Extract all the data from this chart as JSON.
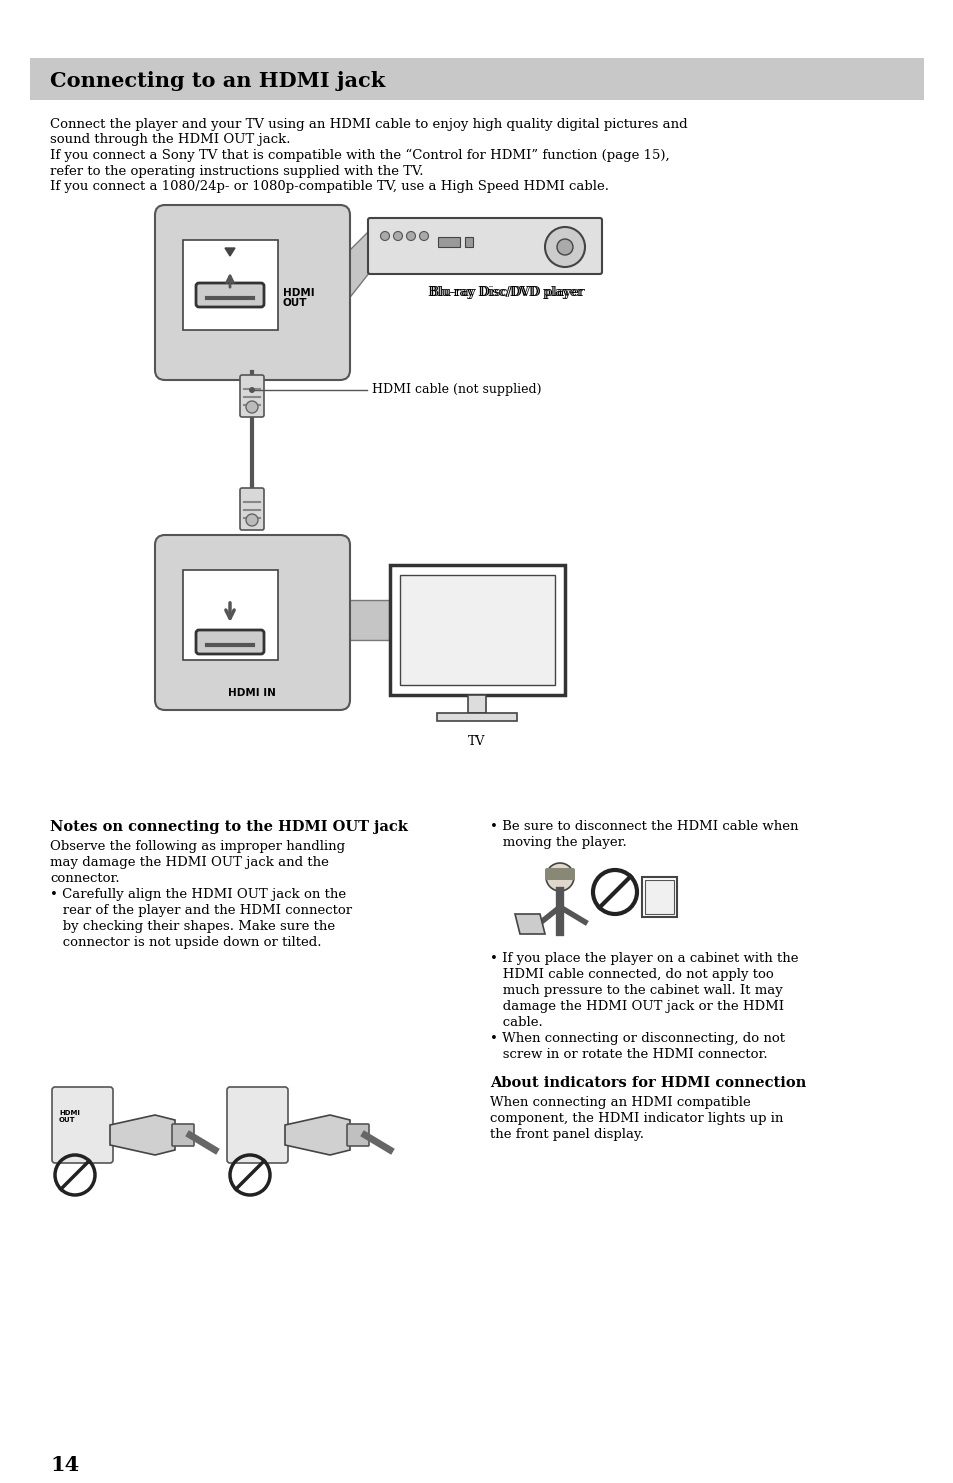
{
  "page_bg": "#ffffff",
  "header_bg": "#c8c8c8",
  "header_text": "Connecting to an HDMI jack",
  "body_font_size": 9.5,
  "bold_font_size": 10.5,
  "page_number": "14",
  "intro_lines": [
    "Connect the player and your TV using an HDMI cable to enjoy high quality digital pictures and",
    "sound through the HDMI OUT jack.",
    "If you connect a Sony TV that is compatible with the “Control for HDMI” function (page 15),",
    "refer to the operating instructions supplied with the TV.",
    "If you connect a 1080/24p- or 1080p-compatible TV, use a High Speed HDMI cable."
  ],
  "left_section_title": "Notes on connecting to the HDMI OUT jack",
  "left_section_body": [
    "Observe the following as improper handling",
    "may damage the HDMI OUT jack and the",
    "connector.",
    "• Carefully align the HDMI OUT jack on the",
    "   rear of the player and the HDMI connector",
    "   by checking their shapes. Make sure the",
    "   connector is not upside down or tilted."
  ],
  "right_bullet1a": "• Be sure to disconnect the HDMI cable when",
  "right_bullet1b": "   moving the player.",
  "right_bullet2": [
    "• If you place the player on a cabinet with the",
    "   HDMI cable connected, do not apply too",
    "   much pressure to the cabinet wall. It may",
    "   damage the HDMI OUT jack or the HDMI",
    "   cable."
  ],
  "right_bullet3": [
    "• When connecting or disconnecting, do not",
    "   screw in or rotate the HDMI connector."
  ],
  "right_section2_title": "About indicators for HDMI connection",
  "right_section2_body": [
    "When connecting an HDMI compatible",
    "component, the HDMI indicator lights up in",
    "the front panel display."
  ],
  "colors": {
    "black": "#000000",
    "light_gray": "#c8c8c8",
    "box_gray": "#d3d3d3",
    "mid_gray": "#999999",
    "dark_gray": "#555555"
  }
}
